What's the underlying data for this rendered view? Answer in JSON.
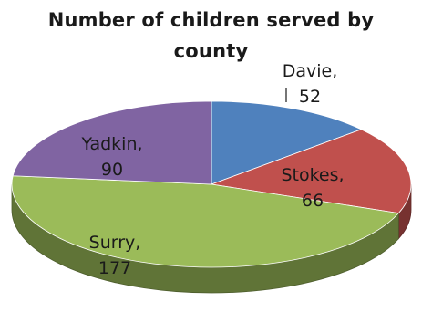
{
  "chart_data": {
    "type": "pie",
    "title_lines": [
      "Number of children served by",
      "county"
    ],
    "slices": [
      {
        "label": "Davie",
        "value": 52,
        "color": "#4f81bd"
      },
      {
        "label": "Stokes",
        "value": 66,
        "color": "#c0504d"
      },
      {
        "label": "Surry",
        "value": 177,
        "color": "#9bbb59"
      },
      {
        "label": "Yadkin",
        "value": 90,
        "color": "#8064a2"
      }
    ],
    "style": "3d",
    "legend": "none",
    "data_labels": "category-and-value"
  }
}
